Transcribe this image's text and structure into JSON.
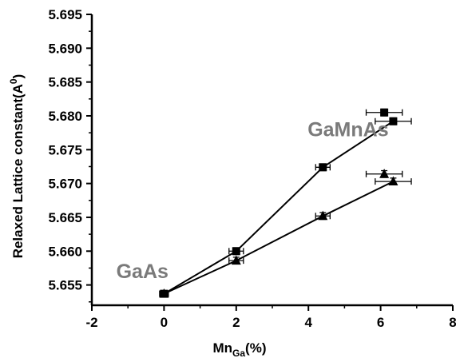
{
  "chart_data": {
    "type": "scatter",
    "xlabel": {
      "base": "Mn",
      "sub": "Ga",
      "suffix": "(%)"
    },
    "ylabel": {
      "base": "Relaxed Lattice constant(A",
      "sup": "0",
      "suffix": ")"
    },
    "xlim": [
      -2,
      8
    ],
    "ylim": [
      5.652,
      5.695
    ],
    "x_ticks": [
      "-2",
      "0",
      "2",
      "4",
      "6",
      "8"
    ],
    "y_ticks": [
      "5.655",
      "5.660",
      "5.665",
      "5.670",
      "5.675",
      "5.680",
      "5.685",
      "5.690",
      "5.695"
    ],
    "grid": false,
    "series": [
      {
        "marker": "square",
        "color": "#000000",
        "points": [
          {
            "x": 0,
            "y": 5.6537,
            "xerr": 0.12,
            "yerr": 0.0004
          },
          {
            "x": 2.0,
            "y": 5.66,
            "xerr": 0.2,
            "yerr": 0.0005
          },
          {
            "x": 4.4,
            "y": 5.6724,
            "xerr": 0.2,
            "yerr": 0.0005
          },
          {
            "x": 6.1,
            "y": 5.6805,
            "xerr": 0.5,
            "yerr": 0.0005
          },
          {
            "x": 6.35,
            "y": 5.6792,
            "xerr": 0.5,
            "yerr": 0.0005
          }
        ],
        "line": [
          [
            0,
            5.6537
          ],
          [
            2.0,
            5.66
          ],
          [
            4.4,
            5.6724
          ],
          [
            6.35,
            5.6792
          ]
        ]
      },
      {
        "marker": "triangle",
        "color": "#000000",
        "points": [
          {
            "x": 0,
            "y": 5.6537,
            "xerr": 0.12,
            "yerr": 0.0004
          },
          {
            "x": 2.0,
            "y": 5.6586,
            "xerr": 0.2,
            "yerr": 0.0005
          },
          {
            "x": 4.4,
            "y": 5.6652,
            "xerr": 0.2,
            "yerr": 0.0005
          },
          {
            "x": 6.1,
            "y": 5.6714,
            "xerr": 0.5,
            "yerr": 0.0005
          },
          {
            "x": 6.35,
            "y": 5.6703,
            "xerr": 0.5,
            "yerr": 0.0005
          }
        ],
        "line": [
          [
            0,
            5.6537
          ],
          [
            2.0,
            5.6586
          ],
          [
            4.4,
            5.6652
          ],
          [
            6.35,
            5.6703
          ]
        ]
      }
    ],
    "annotations": [
      {
        "text": "GaMnAs",
        "x": 5.1,
        "y": 5.677
      },
      {
        "text": "GaAs",
        "x": -0.6,
        "y": 5.656
      }
    ]
  }
}
